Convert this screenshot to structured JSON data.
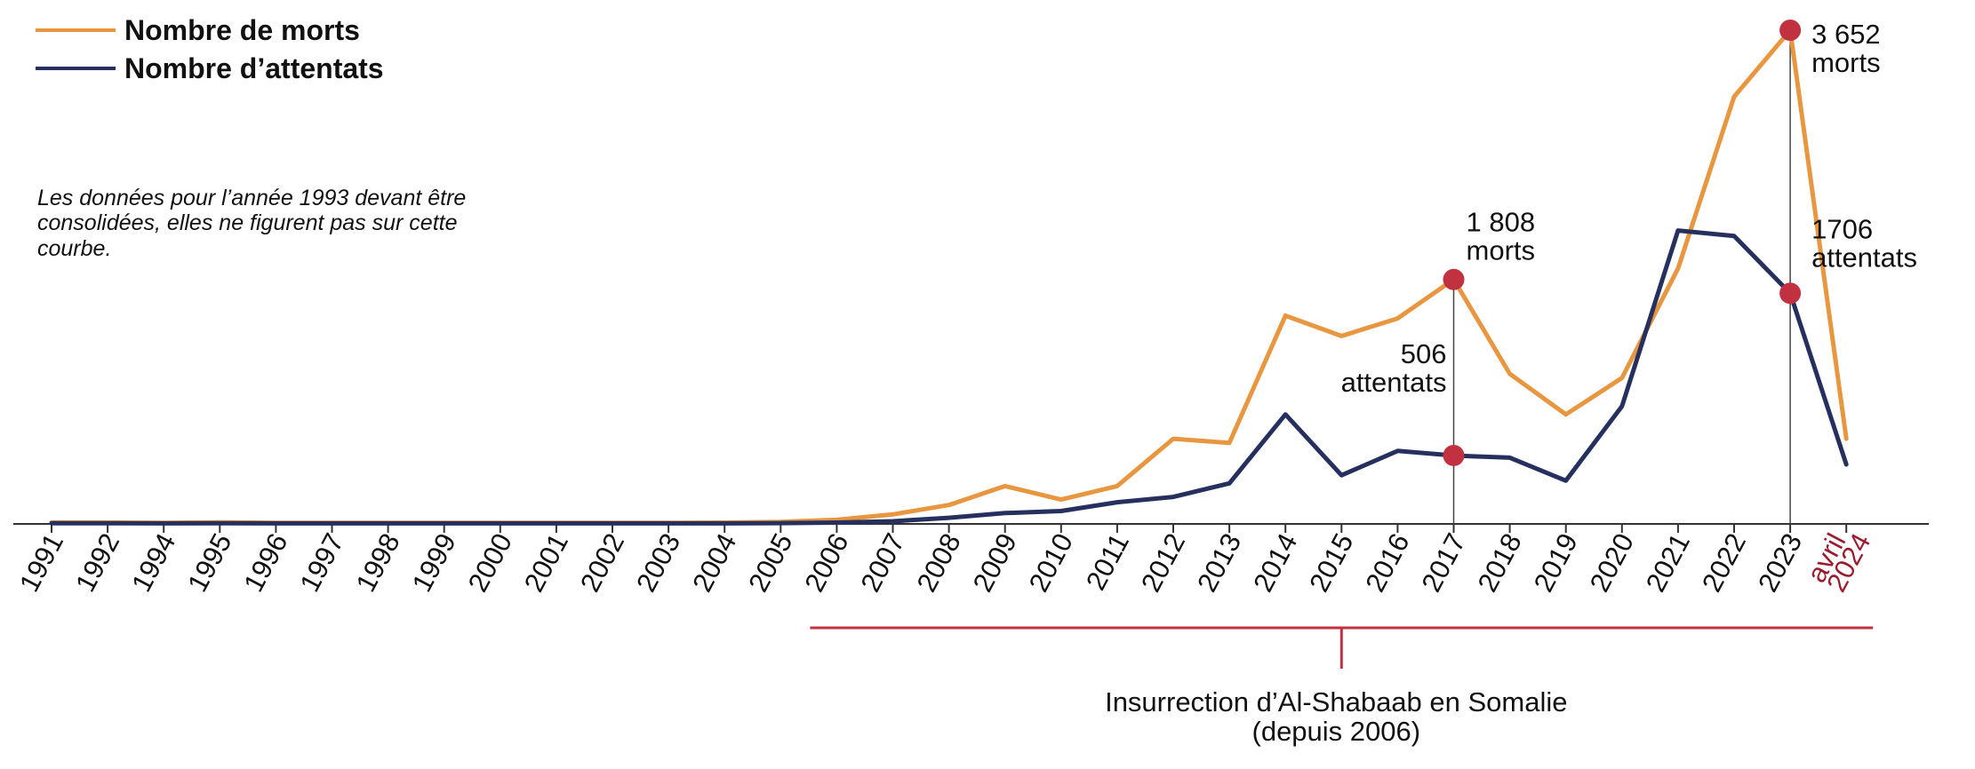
{
  "colors": {
    "deaths": "#e8963f",
    "attacks": "#26305e",
    "accent": "#c1313f",
    "axis": "#333333",
    "highlight_label": "#9b1c2e"
  },
  "legend": [
    {
      "label": "Nombre de morts",
      "series": "deaths"
    },
    {
      "label": "Nombre d’attentats",
      "series": "attacks"
    }
  ],
  "note": [
    "Les données pour l’année 1993 devant être",
    "consolidées, elles ne figurent pas sur cette",
    "courbe."
  ],
  "chart_data": {
    "type": "line",
    "categories": [
      "1991",
      "1992",
      "1994",
      "1995",
      "1996",
      "1997",
      "1998",
      "1999",
      "2000",
      "2001",
      "2002",
      "2003",
      "2004",
      "2005",
      "2006",
      "2007",
      "2008",
      "2009",
      "2010",
      "2011",
      "2012",
      "2013",
      "2014",
      "2015",
      "2016",
      "2017",
      "2018",
      "2019",
      "2020",
      "2021",
      "2022",
      "2023",
      "avril 2024"
    ],
    "highlighted_category": "avril 2024",
    "ylim": [
      0,
      3652
    ],
    "grid": false,
    "legend_position": "top-left",
    "series": [
      {
        "key": "deaths",
        "name": "Nombre de morts",
        "values": [
          10,
          10,
          8,
          12,
          8,
          8,
          8,
          8,
          8,
          8,
          8,
          8,
          10,
          15,
          30,
          70,
          140,
          280,
          180,
          280,
          630,
          600,
          1540,
          1390,
          1520,
          1808,
          1110,
          810,
          1080,
          1890,
          3160,
          3652,
          630
        ]
      },
      {
        "key": "attacks",
        "name": "Nombre d’attentats",
        "values": [
          5,
          5,
          4,
          5,
          4,
          4,
          4,
          4,
          4,
          4,
          4,
          4,
          4,
          6,
          10,
          20,
          45,
          80,
          95,
          160,
          200,
          300,
          810,
          360,
          540,
          506,
          490,
          320,
          870,
          2170,
          2130,
          1706,
          440
        ]
      }
    ],
    "annotations": [
      {
        "category": "2017",
        "series": "deaths",
        "value": 1808,
        "lines": [
          "1 808",
          "morts"
        ],
        "side": "right"
      },
      {
        "category": "2017",
        "series": "attacks",
        "value": 506,
        "lines": [
          "506",
          "attentats"
        ],
        "side": "left"
      },
      {
        "category": "2023",
        "series": "deaths",
        "value": 3652,
        "lines": [
          "3 652",
          "morts"
        ],
        "side": "right"
      },
      {
        "category": "2023",
        "series": "attacks",
        "value": 1706,
        "lines": [
          "1706",
          "attentats"
        ],
        "side": "right"
      }
    ],
    "period": {
      "from": "2006",
      "to": "avril 2024",
      "lines": [
        "Insurrection d’Al-Shabaab en Somalie",
        "(depuis 2006)"
      ]
    }
  }
}
